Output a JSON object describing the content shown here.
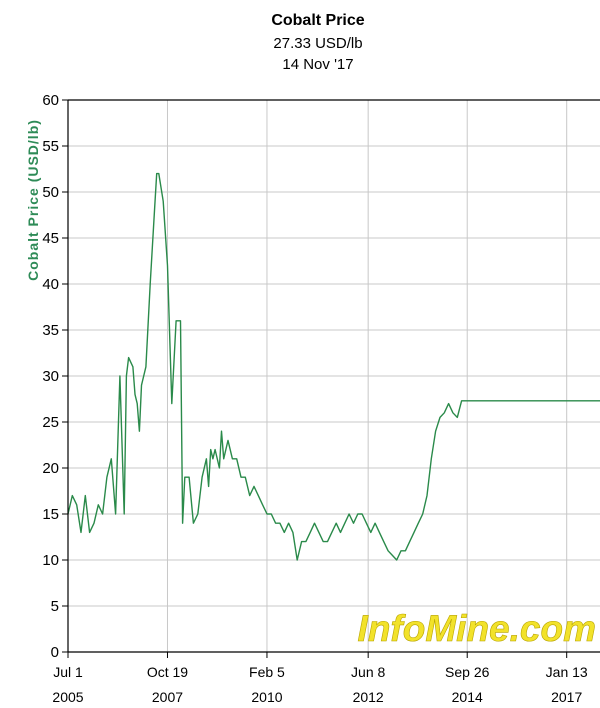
{
  "colors": {
    "line": "#2a8a4a",
    "grid": "#c8c8c8",
    "axis_label": "#2e8b57",
    "watermark": "#f2e22a",
    "frame": "#000000"
  },
  "chart_data": {
    "type": "line",
    "title": "Cobalt Price",
    "subtitle_price": "27.33 USD/lb",
    "subtitle_date": "14 Nov '17",
    "ylabel": "Cobalt Price (USD/lb)",
    "xlabel": "",
    "ylim": [
      0,
      60
    ],
    "xlim": [
      2005.5,
      2017.8
    ],
    "yticks": [
      0,
      5,
      10,
      15,
      20,
      25,
      30,
      35,
      40,
      45,
      50,
      55,
      60
    ],
    "xticks": [
      {
        "value": 2005.5,
        "line1": "Jul 1",
        "line2": "2005"
      },
      {
        "value": 2007.8,
        "line1": "Oct 19",
        "line2": "2007"
      },
      {
        "value": 2010.1,
        "line1": "Feb 5",
        "line2": "2010"
      },
      {
        "value": 2012.44,
        "line1": "Jun 8",
        "line2": "2012"
      },
      {
        "value": 2014.73,
        "line1": "Sep 26",
        "line2": "2014"
      },
      {
        "value": 2017.03,
        "line1": "Jan 13",
        "line2": "2017"
      }
    ],
    "grid": true,
    "legend": "none",
    "watermark": "InfoMine.com",
    "series": [
      {
        "x": [
          2005.5,
          2005.6,
          2005.7,
          2005.8,
          2005.9,
          2006.0,
          2006.1,
          2006.2,
          2006.3,
          2006.4,
          2006.5,
          2006.6,
          2006.7,
          2006.8,
          2006.85,
          2006.9,
          2007.0,
          2007.05,
          2007.1,
          2007.15,
          2007.2,
          2007.3,
          2007.4,
          2007.5,
          2007.55,
          2007.6,
          2007.7,
          2007.8,
          2007.9,
          2008.0,
          2008.1,
          2008.15,
          2008.2,
          2008.3,
          2008.4,
          2008.5,
          2008.6,
          2008.7,
          2008.75,
          2008.8,
          2008.85,
          2008.9,
          2009.0,
          2009.05,
          2009.1,
          2009.2,
          2009.3,
          2009.4,
          2009.5,
          2009.6,
          2009.7,
          2009.8,
          2009.9,
          2010.0,
          2010.1,
          2010.2,
          2010.3,
          2010.4,
          2010.5,
          2010.6,
          2010.7,
          2010.8,
          2010.9,
          2011.0,
          2011.1,
          2011.2,
          2011.3,
          2011.4,
          2011.5,
          2011.6,
          2011.7,
          2011.8,
          2011.9,
          2012.0,
          2012.1,
          2012.2,
          2012.3,
          2012.4,
          2012.5,
          2012.6,
          2012.7,
          2012.8,
          2012.9,
          2013.0,
          2013.1,
          2013.2,
          2013.3,
          2013.4,
          2013.5,
          2013.6,
          2013.7,
          2013.8,
          2013.9,
          2014.0,
          2014.1,
          2014.2,
          2014.3,
          2014.4,
          2014.5,
          2014.6,
          2014.7,
          2014.8,
          2014.9,
          2015.0,
          2015.1,
          2015.2,
          2015.3,
          2015.4,
          2015.5,
          2015.6,
          2015.7,
          2015.8,
          2015.9,
          2016.0,
          2016.1,
          2016.2,
          2016.3,
          2016.4,
          2016.5,
          2016.6,
          2016.7,
          2016.8,
          2016.9,
          2017.0,
          2017.1,
          2017.2,
          2017.3,
          2017.4,
          2017.5,
          2017.6,
          2017.7,
          2017.8
        ],
        "values": [
          15,
          17,
          16,
          13,
          17,
          13,
          14,
          16,
          15,
          19,
          21,
          15,
          30,
          15,
          30,
          32,
          31,
          28,
          27,
          24,
          29,
          31,
          40,
          48,
          52,
          52,
          49,
          42,
          27,
          36,
          36,
          14,
          19,
          19,
          14,
          15,
          19,
          21,
          18,
          22,
          21,
          22,
          20,
          24,
          21,
          23,
          21,
          21,
          19,
          19,
          17,
          18,
          17,
          16,
          15,
          15,
          14,
          14,
          13,
          14,
          13,
          10,
          12,
          12,
          13,
          14,
          13,
          12,
          12,
          13,
          14,
          13,
          14,
          15,
          14,
          15,
          15,
          14,
          13,
          14,
          13,
          12,
          11,
          10.5,
          10,
          11,
          11,
          12,
          13,
          14,
          15,
          17,
          21,
          24,
          25.5,
          26,
          27,
          26,
          25.5,
          27.3,
          27.3,
          27.3,
          27.3,
          27.3,
          27.3,
          27.3,
          27.3,
          27.3,
          27.3,
          27.3,
          27.3,
          27.3,
          27.3,
          27.3,
          27.3,
          27.3,
          27.3,
          27.3,
          27.3,
          27.3,
          27.3,
          27.3,
          27.3,
          27.3,
          27.3,
          27.3,
          27.3,
          27.3,
          27.3,
          27.3,
          27.3,
          27.3
        ]
      }
    ]
  }
}
